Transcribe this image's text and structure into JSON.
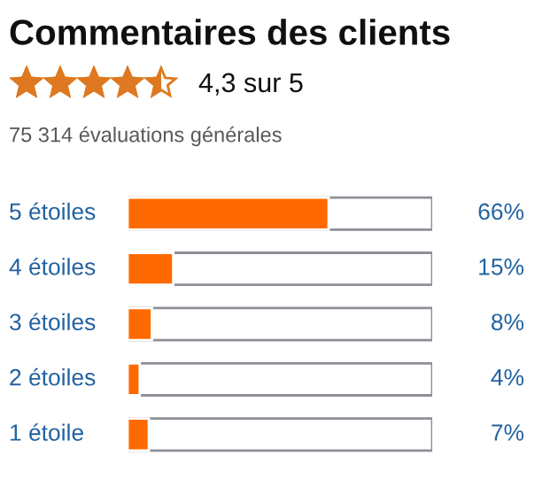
{
  "chart_data": {
    "type": "bar",
    "orientation": "horizontal",
    "title": "Commentaires des clients",
    "subtitle": "75 314 évaluations générales",
    "annotations": [
      "4,3 sur 5"
    ],
    "categories": [
      "5 étoiles",
      "4 étoiles",
      "3 étoiles",
      "2 étoiles",
      "1 étoile"
    ],
    "values": [
      66,
      15,
      8,
      4,
      7
    ],
    "color": "#ff6a00",
    "value_labels": [
      "66%",
      "15%",
      "8%",
      "4%",
      "7%"
    ],
    "xlim": [
      0,
      100
    ],
    "tick_labels": false,
    "legend": false
  }
}
